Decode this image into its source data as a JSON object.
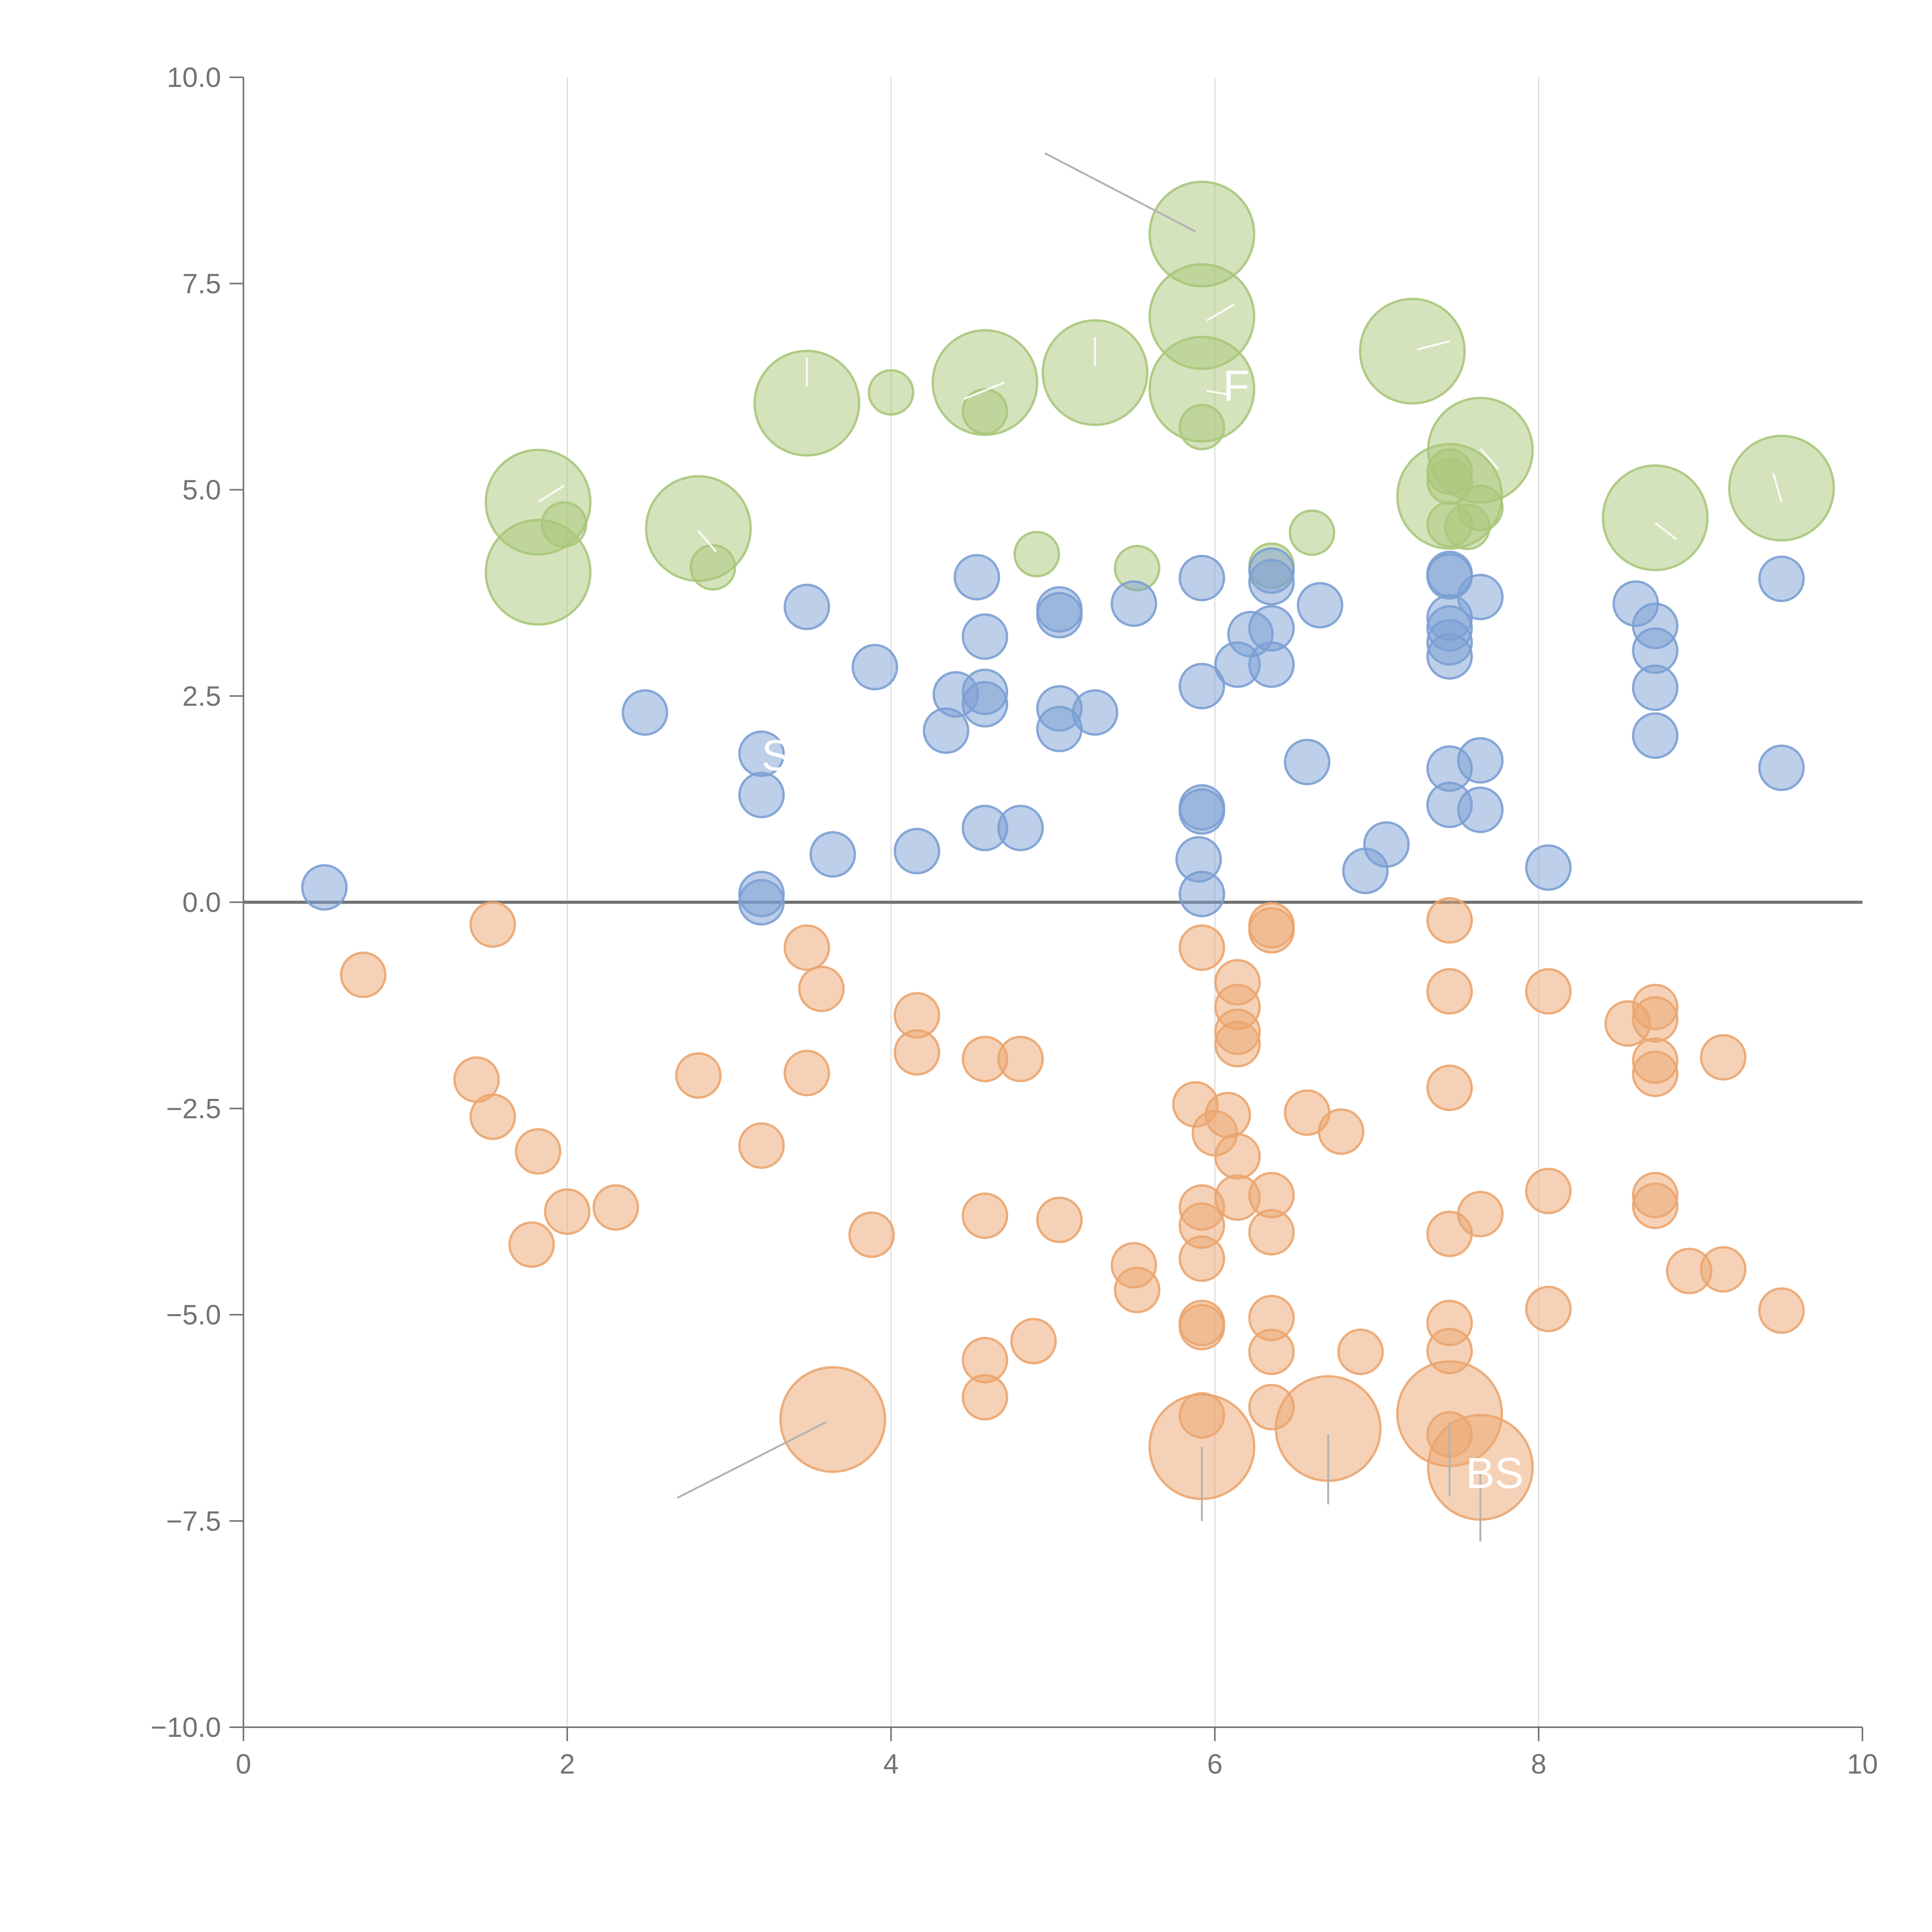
{
  "chart_data": {
    "type": "scatter",
    "xlim": [
      0,
      10
    ],
    "ylim": [
      -10,
      10
    ],
    "x_ticks": [
      "0",
      "2",
      "4",
      "6",
      "8",
      "10"
    ],
    "y_ticks": [
      "−10.0",
      "−7.5",
      "−5.0",
      "−2.5",
      "0.0",
      "2.5",
      "5.0",
      "7.5",
      "10.0"
    ],
    "grid": "vertical",
    "colors": {
      "green": "#a9c77a",
      "blue": "#7b9fd4",
      "orange": "#eba56f"
    },
    "series": [
      {
        "color": "green",
        "points": [
          [
            5.92,
            8.1,
            2.6
          ],
          [
            5.92,
            7.1,
            2.6
          ],
          [
            3.48,
            6.05,
            2.6
          ],
          [
            4.58,
            6.3,
            2.6
          ],
          [
            5.26,
            6.42,
            2.6
          ],
          [
            5.92,
            6.22,
            2.6
          ],
          [
            7.22,
            6.68,
            2.6
          ],
          [
            7.64,
            5.48,
            2.6
          ],
          [
            9.5,
            5.02,
            2.6
          ],
          [
            8.72,
            4.66,
            2.6
          ],
          [
            7.45,
            4.92,
            2.6
          ],
          [
            1.82,
            4.85,
            2.6
          ],
          [
            2.81,
            4.53,
            2.6
          ],
          [
            1.82,
            4.0,
            2.6
          ],
          [
            4.0,
            6.18,
            1.1
          ],
          [
            4.58,
            5.95,
            1.1
          ],
          [
            5.92,
            5.76,
            1.1
          ],
          [
            7.45,
            5.22,
            1.1
          ],
          [
            7.45,
            5.1,
            1.1
          ],
          [
            7.64,
            4.78,
            1.1
          ],
          [
            7.45,
            4.58,
            1.1
          ],
          [
            7.56,
            4.55,
            1.1
          ],
          [
            1.98,
            4.58,
            1.1
          ],
          [
            2.9,
            4.06,
            1.1
          ],
          [
            4.9,
            4.22,
            1.1
          ],
          [
            5.52,
            4.05,
            1.1
          ],
          [
            6.35,
            4.08,
            1.1
          ],
          [
            6.6,
            4.48,
            1.1
          ]
        ]
      },
      {
        "color": "blue",
        "points": [
          [
            0.5,
            0.18,
            1.1
          ],
          [
            2.48,
            2.3,
            1.1
          ],
          [
            3.2,
            1.8,
            1.1
          ],
          [
            3.2,
            1.3,
            1.1
          ],
          [
            3.2,
            0.1,
            1.1
          ],
          [
            3.2,
            0.0,
            1.1
          ],
          [
            3.48,
            3.58,
            1.1
          ],
          [
            3.64,
            0.58,
            1.1
          ],
          [
            3.9,
            2.85,
            1.1
          ],
          [
            4.16,
            0.62,
            1.1
          ],
          [
            4.34,
            2.08,
            1.1
          ],
          [
            4.4,
            2.52,
            1.1
          ],
          [
            4.53,
            3.94,
            1.1
          ],
          [
            4.58,
            3.22,
            1.1
          ],
          [
            4.58,
            2.55,
            1.1
          ],
          [
            4.58,
            2.4,
            1.1
          ],
          [
            4.58,
            0.9,
            1.1
          ],
          [
            4.8,
            0.9,
            1.1
          ],
          [
            5.04,
            3.55,
            1.1
          ],
          [
            5.04,
            3.48,
            1.1
          ],
          [
            5.04,
            2.35,
            1.1
          ],
          [
            5.04,
            2.1,
            1.1
          ],
          [
            5.26,
            2.3,
            1.1
          ],
          [
            5.5,
            3.62,
            1.1
          ],
          [
            5.92,
            3.93,
            1.1
          ],
          [
            5.92,
            2.62,
            1.1
          ],
          [
            5.92,
            1.15,
            1.1
          ],
          [
            5.92,
            1.1,
            1.1
          ],
          [
            5.9,
            0.52,
            1.1
          ],
          [
            5.92,
            0.1,
            1.1
          ],
          [
            6.14,
            2.88,
            1.1
          ],
          [
            6.22,
            3.25,
            1.1
          ],
          [
            6.35,
            4.02,
            1.1
          ],
          [
            6.35,
            3.88,
            1.1
          ],
          [
            6.35,
            3.32,
            1.1
          ],
          [
            6.35,
            2.88,
            1.1
          ],
          [
            6.57,
            1.7,
            1.1
          ],
          [
            6.65,
            3.6,
            1.1
          ],
          [
            6.93,
            0.38,
            1.1
          ],
          [
            7.06,
            0.7,
            1.1
          ],
          [
            7.45,
            3.98,
            1.1
          ],
          [
            7.45,
            3.95,
            1.1
          ],
          [
            7.45,
            3.45,
            1.1
          ],
          [
            7.45,
            3.32,
            1.1
          ],
          [
            7.45,
            3.15,
            1.1
          ],
          [
            7.45,
            2.98,
            1.1
          ],
          [
            7.45,
            1.62,
            1.1
          ],
          [
            7.45,
            1.18,
            1.1
          ],
          [
            7.64,
            3.7,
            1.1
          ],
          [
            7.64,
            1.72,
            1.1
          ],
          [
            7.64,
            1.12,
            1.1
          ],
          [
            8.06,
            0.42,
            1.1
          ],
          [
            8.6,
            3.62,
            1.1
          ],
          [
            8.72,
            3.35,
            1.1
          ],
          [
            8.72,
            3.05,
            1.1
          ],
          [
            8.72,
            2.6,
            1.1
          ],
          [
            8.72,
            2.02,
            1.1
          ],
          [
            9.5,
            3.92,
            1.1
          ],
          [
            9.5,
            1.63,
            1.1
          ]
        ]
      },
      {
        "color": "orange",
        "points": [
          [
            3.64,
            -6.27,
            2.6
          ],
          [
            5.92,
            -6.6,
            2.6
          ],
          [
            6.7,
            -6.38,
            2.6
          ],
          [
            7.45,
            -6.2,
            2.6
          ],
          [
            7.64,
            -6.85,
            2.6
          ],
          [
            0.74,
            -0.88,
            1.1
          ],
          [
            1.54,
            -0.27,
            1.1
          ],
          [
            1.44,
            -2.15,
            1.1
          ],
          [
            1.54,
            -2.6,
            1.1
          ],
          [
            1.82,
            -3.02,
            1.1
          ],
          [
            1.78,
            -4.15,
            1.1
          ],
          [
            2.0,
            -3.75,
            1.1
          ],
          [
            2.3,
            -3.7,
            1.1
          ],
          [
            2.81,
            -2.1,
            1.1
          ],
          [
            3.2,
            -2.95,
            1.1
          ],
          [
            3.48,
            -0.55,
            1.1
          ],
          [
            3.57,
            -1.05,
            1.1
          ],
          [
            3.48,
            -2.07,
            1.1
          ],
          [
            3.88,
            -4.03,
            1.1
          ],
          [
            4.16,
            -1.37,
            1.1
          ],
          [
            4.16,
            -1.82,
            1.1
          ],
          [
            4.58,
            -1.9,
            1.1
          ],
          [
            4.8,
            -1.9,
            1.1
          ],
          [
            4.58,
            -3.8,
            1.1
          ],
          [
            5.04,
            -3.85,
            1.1
          ],
          [
            4.58,
            -5.55,
            1.1
          ],
          [
            4.58,
            -6.0,
            1.1
          ],
          [
            4.88,
            -5.32,
            1.1
          ],
          [
            5.5,
            -4.4,
            1.1
          ],
          [
            5.52,
            -4.7,
            1.1
          ],
          [
            5.92,
            -0.55,
            1.1
          ],
          [
            5.88,
            -2.45,
            1.1
          ],
          [
            5.92,
            -3.7,
            1.1
          ],
          [
            5.92,
            -3.92,
            1.1
          ],
          [
            5.92,
            -4.32,
            1.1
          ],
          [
            5.92,
            -5.1,
            1.1
          ],
          [
            5.92,
            -5.15,
            1.1
          ],
          [
            5.92,
            -6.22,
            1.1
          ],
          [
            6.0,
            -2.8,
            1.1
          ],
          [
            6.08,
            -2.58,
            1.1
          ],
          [
            6.14,
            -0.97,
            1.1
          ],
          [
            6.14,
            -1.27,
            1.1
          ],
          [
            6.14,
            -1.57,
            1.1
          ],
          [
            6.14,
            -1.72,
            1.1
          ],
          [
            6.14,
            -3.08,
            1.1
          ],
          [
            6.14,
            -3.58,
            1.1
          ],
          [
            6.35,
            -0.28,
            1.1
          ],
          [
            6.35,
            -0.34,
            1.1
          ],
          [
            6.35,
            -3.55,
            1.1
          ],
          [
            6.35,
            -4.0,
            1.1
          ],
          [
            6.35,
            -5.04,
            1.1
          ],
          [
            6.35,
            -5.45,
            1.1
          ],
          [
            6.35,
            -6.12,
            1.1
          ],
          [
            6.57,
            -2.55,
            1.1
          ],
          [
            6.78,
            -2.78,
            1.1
          ],
          [
            6.9,
            -5.45,
            1.1
          ],
          [
            7.45,
            -0.22,
            1.1
          ],
          [
            7.45,
            -1.08,
            1.1
          ],
          [
            7.45,
            -2.25,
            1.1
          ],
          [
            7.45,
            -4.02,
            1.1
          ],
          [
            7.45,
            -5.1,
            1.1
          ],
          [
            7.45,
            -5.44,
            1.1
          ],
          [
            7.45,
            -6.45,
            1.1
          ],
          [
            7.64,
            -3.78,
            1.1
          ],
          [
            8.06,
            -1.08,
            1.1
          ],
          [
            8.06,
            -3.5,
            1.1
          ],
          [
            8.06,
            -4.93,
            1.1
          ],
          [
            8.55,
            -1.47,
            1.1
          ],
          [
            8.72,
            -1.27,
            1.1
          ],
          [
            8.72,
            -1.42,
            1.1
          ],
          [
            8.72,
            -1.92,
            1.1
          ],
          [
            8.72,
            -2.08,
            1.1
          ],
          [
            8.72,
            -3.55,
            1.1
          ],
          [
            8.72,
            -3.68,
            1.1
          ],
          [
            8.93,
            -4.47,
            1.1
          ],
          [
            9.14,
            -1.88,
            1.1
          ],
          [
            9.14,
            -4.45,
            1.1
          ],
          [
            9.5,
            -4.95,
            1.1
          ]
        ]
      }
    ],
    "annotations": [
      {
        "text": "F",
        "x": 6.05,
        "y": 6.08
      },
      {
        "text": "S",
        "x": 3.2,
        "y": 1.6
      },
      {
        "text": "BS",
        "x": 7.55,
        "y": -7.1
      }
    ]
  }
}
